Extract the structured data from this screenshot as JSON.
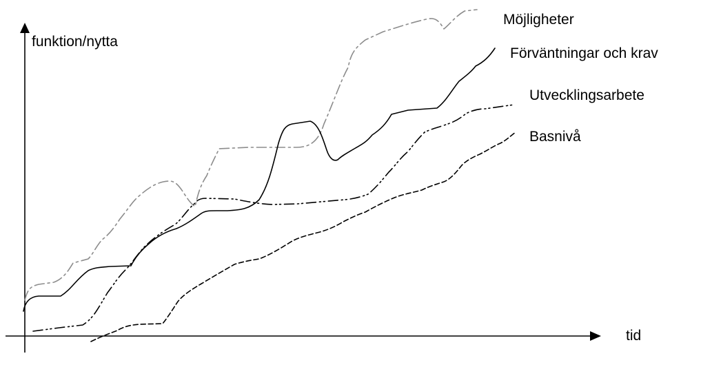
{
  "diagram": {
    "y_axis_label": "funktion/nytta",
    "x_axis_label": "tid",
    "curves": [
      {
        "key": "mojligheter",
        "label": "Möjligheter",
        "color": "#8c8c8c",
        "line_style": "dash-dot"
      },
      {
        "key": "forvantningar",
        "label": "Förväntningar och krav",
        "color": "#000000",
        "line_style": "solid"
      },
      {
        "key": "utveckling",
        "label": "Utvecklingsarbete",
        "color": "#000000",
        "line_style": "dash-dot-dot"
      },
      {
        "key": "basniva",
        "label": "Basnivå",
        "color": "#000000",
        "line_style": "dashed"
      }
    ]
  }
}
